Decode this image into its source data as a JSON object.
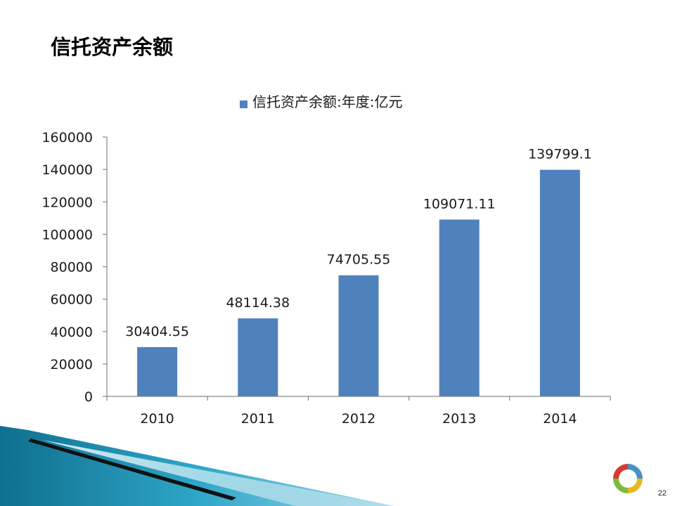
{
  "slide": {
    "title": "信托资产余额",
    "page_number": "22"
  },
  "colors": {
    "bar": "#4F81BD",
    "axis": "#868686",
    "deco_teal": "#1F8FB0",
    "deco_light": "#BFE3EE"
  },
  "icons": [
    "logo-icon"
  ],
  "chart_data": {
    "type": "bar",
    "categories": [
      "2010",
      "2011",
      "2012",
      "2013",
      "2014"
    ],
    "series": [
      {
        "name": "信托资产余额:年度:亿元",
        "values": [
          30404.55,
          48114.38,
          74705.55,
          109071.11,
          139799.1
        ],
        "labels": [
          "30404.55",
          "48114.38",
          "74705.55",
          "109071.11",
          "139799.1"
        ]
      }
    ],
    "ylim": [
      0,
      160000
    ],
    "yticks": [
      "0",
      "20000",
      "40000",
      "60000",
      "80000",
      "100000",
      "120000",
      "140000",
      "160000"
    ],
    "grid": false,
    "legend_position": "top"
  }
}
